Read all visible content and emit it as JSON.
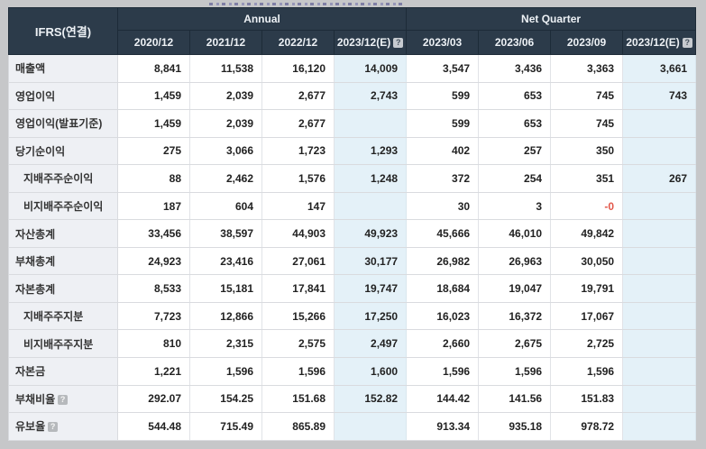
{
  "page": {
    "background_color": "#c6c7c9"
  },
  "table": {
    "corner_label": "IFRS(연결)",
    "column_groups": [
      {
        "label": "Annual",
        "columns": [
          "2020/12",
          "2021/12",
          "2022/12",
          "2023/12(E)"
        ]
      },
      {
        "label": "Net Quarter",
        "columns": [
          "2023/03",
          "2023/06",
          "2023/09",
          "2023/12(E)"
        ]
      }
    ],
    "estimate_column_indexes": [
      3,
      7
    ],
    "help_icon_glyph": "?",
    "colors": {
      "header_bg": "#2c3b4a",
      "estimate_col_bg": "#e4f1f8",
      "label_col_bg": "#eef0f4",
      "negative_value": "#e2574a"
    },
    "rows": [
      {
        "label": "매출액",
        "indent": false,
        "help": false,
        "values": [
          "8,841",
          "11,538",
          "16,120",
          "14,009",
          "3,547",
          "3,436",
          "3,363",
          "3,661"
        ]
      },
      {
        "label": "영업이익",
        "indent": false,
        "help": false,
        "values": [
          "1,459",
          "2,039",
          "2,677",
          "2,743",
          "599",
          "653",
          "745",
          "743"
        ]
      },
      {
        "label": "영업이익(발표기준)",
        "indent": false,
        "help": false,
        "values": [
          "1,459",
          "2,039",
          "2,677",
          "",
          "599",
          "653",
          "745",
          ""
        ]
      },
      {
        "label": "당기순이익",
        "indent": false,
        "help": false,
        "values": [
          "275",
          "3,066",
          "1,723",
          "1,293",
          "402",
          "257",
          "350",
          ""
        ]
      },
      {
        "label": "지배주주순이익",
        "indent": true,
        "help": false,
        "values": [
          "88",
          "2,462",
          "1,576",
          "1,248",
          "372",
          "254",
          "351",
          "267"
        ]
      },
      {
        "label": "비지배주주순이익",
        "indent": true,
        "help": false,
        "values": [
          "187",
          "604",
          "147",
          "",
          "30",
          "3",
          "-0",
          ""
        ]
      },
      {
        "label": "자산총계",
        "indent": false,
        "help": false,
        "values": [
          "33,456",
          "38,597",
          "44,903",
          "49,923",
          "45,666",
          "46,010",
          "49,842",
          ""
        ]
      },
      {
        "label": "부채총계",
        "indent": false,
        "help": false,
        "values": [
          "24,923",
          "23,416",
          "27,061",
          "30,177",
          "26,982",
          "26,963",
          "30,050",
          ""
        ]
      },
      {
        "label": "자본총계",
        "indent": false,
        "help": false,
        "values": [
          "8,533",
          "15,181",
          "17,841",
          "19,747",
          "18,684",
          "19,047",
          "19,791",
          ""
        ]
      },
      {
        "label": "지배주주지분",
        "indent": true,
        "help": false,
        "values": [
          "7,723",
          "12,866",
          "15,266",
          "17,250",
          "16,023",
          "16,372",
          "17,067",
          ""
        ]
      },
      {
        "label": "비지배주주지분",
        "indent": true,
        "help": false,
        "values": [
          "810",
          "2,315",
          "2,575",
          "2,497",
          "2,660",
          "2,675",
          "2,725",
          ""
        ]
      },
      {
        "label": "자본금",
        "indent": false,
        "help": false,
        "values": [
          "1,221",
          "1,596",
          "1,596",
          "1,600",
          "1,596",
          "1,596",
          "1,596",
          ""
        ]
      },
      {
        "label": "부채비율",
        "indent": false,
        "help": true,
        "values": [
          "292.07",
          "154.25",
          "151.68",
          "152.82",
          "144.42",
          "141.56",
          "151.83",
          ""
        ]
      },
      {
        "label": "유보율",
        "indent": false,
        "help": true,
        "values": [
          "544.48",
          "715.49",
          "865.89",
          "",
          "913.34",
          "935.18",
          "978.72",
          ""
        ]
      }
    ]
  }
}
